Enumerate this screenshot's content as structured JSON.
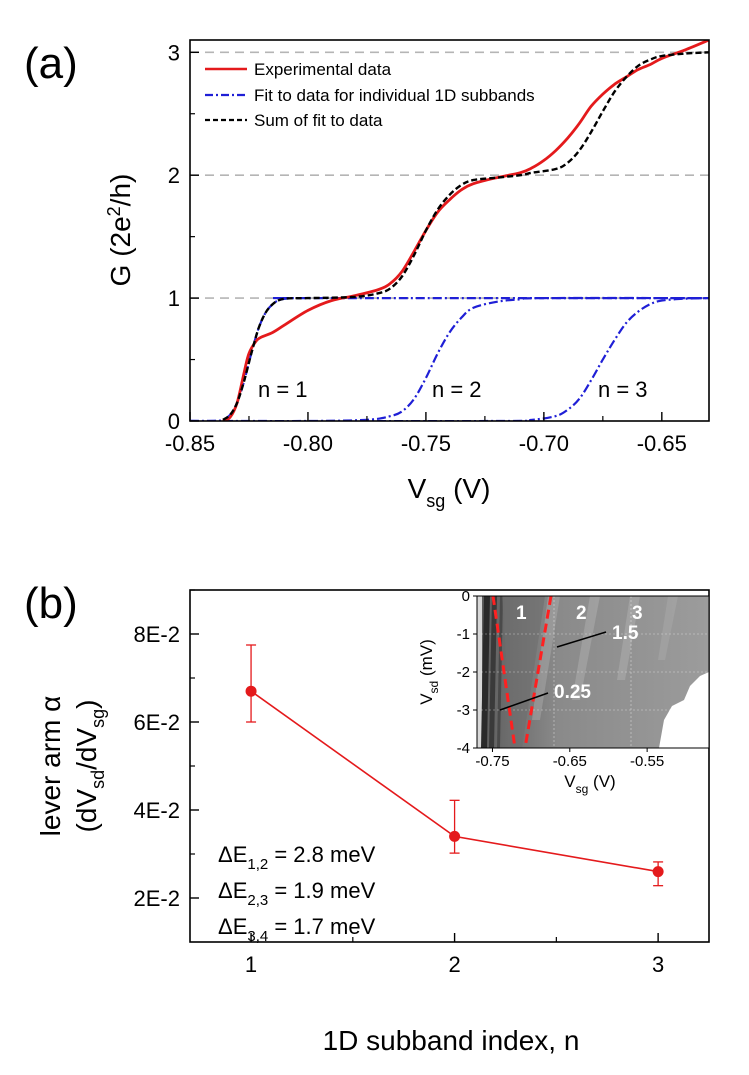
{
  "panel_a": {
    "label": "(a)",
    "legend": [
      {
        "name": "Experimental data",
        "style": "solid",
        "color": "#e41a1c"
      },
      {
        "name": "Fit to data for individual 1D subbands",
        "style": "dash-dot",
        "color": "#1f1fd6"
      },
      {
        "name": "Sum of fit to data",
        "style": "dashed",
        "color": "#000000"
      }
    ],
    "annotations": [
      "n = 1",
      "n = 2",
      "n = 3"
    ]
  },
  "panel_b": {
    "label": "(b)",
    "energy_labels": [
      {
        "prefix": "ΔE",
        "sub": "1,2",
        "value": " = 2.8 meV"
      },
      {
        "prefix": "ΔE",
        "sub": "2,3",
        "value": " = 1.9 meV"
      },
      {
        "prefix": "ΔE",
        "sub": "3,4",
        "value": " = 1.7 meV"
      }
    ],
    "inset": {
      "numbers": [
        "1",
        "2",
        "3"
      ],
      "slopes": [
        "1.5",
        "0.25"
      ],
      "xticks": [
        "-0.75",
        "-0.65",
        "-0.55"
      ],
      "yticks": [
        "0",
        "-1",
        "-2",
        "-3",
        "-4"
      ]
    }
  },
  "chart_data": [
    {
      "type": "line",
      "title": "",
      "xlabel": "V_sg (V)",
      "ylabel": "G (2e^2/h)",
      "xlim": [
        -0.85,
        -0.63
      ],
      "ylim": [
        0,
        3.1
      ],
      "xticks": [
        -0.85,
        -0.8,
        -0.75,
        -0.7,
        -0.65
      ],
      "xtick_labels": [
        "-0.85",
        "-0.80",
        "-0.75",
        "-0.70",
        "-0.65"
      ],
      "yticks": [
        0,
        1,
        2,
        3
      ],
      "ytick_labels": [
        "0",
        "1",
        "2",
        "3"
      ],
      "reference_lines_y": [
        1,
        2,
        3
      ],
      "series": [
        {
          "name": "Experimental data",
          "x": [
            -0.836,
            -0.833,
            -0.83,
            -0.827,
            -0.825,
            -0.822,
            -0.82,
            -0.815,
            -0.81,
            -0.8,
            -0.79,
            -0.78,
            -0.77,
            -0.765,
            -0.76,
            -0.755,
            -0.75,
            -0.745,
            -0.74,
            -0.735,
            -0.73,
            -0.72,
            -0.71,
            -0.705,
            -0.7,
            -0.695,
            -0.69,
            -0.685,
            -0.68,
            -0.675,
            -0.67,
            -0.665,
            -0.66,
            -0.655,
            -0.65,
            -0.64,
            -0.63
          ],
          "values": [
            0,
            0.03,
            0.15,
            0.4,
            0.55,
            0.65,
            0.68,
            0.72,
            0.78,
            0.9,
            0.98,
            1.02,
            1.07,
            1.12,
            1.22,
            1.38,
            1.55,
            1.7,
            1.8,
            1.88,
            1.93,
            1.98,
            2.02,
            2.06,
            2.12,
            2.2,
            2.3,
            2.42,
            2.56,
            2.66,
            2.74,
            2.8,
            2.86,
            2.9,
            2.95,
            3.02,
            3.1
          ]
        },
        {
          "name": "Fit n = 1",
          "x": [
            -0.85,
            -0.84,
            -0.836,
            -0.833,
            -0.83,
            -0.827,
            -0.824,
            -0.821,
            -0.818,
            -0.815,
            -0.812,
            -0.808,
            -0.8,
            -0.63
          ],
          "values": [
            0,
            0,
            0.01,
            0.05,
            0.15,
            0.33,
            0.55,
            0.75,
            0.88,
            0.95,
            0.985,
            0.998,
            1.0,
            1.0
          ]
        },
        {
          "name": "Fit n = 2",
          "x": [
            -0.85,
            -0.8,
            -0.775,
            -0.765,
            -0.76,
            -0.755,
            -0.75,
            -0.745,
            -0.74,
            -0.735,
            -0.73,
            -0.72,
            -0.71,
            -0.7,
            -0.63
          ],
          "values": [
            0,
            0,
            0.01,
            0.04,
            0.08,
            0.18,
            0.35,
            0.55,
            0.72,
            0.84,
            0.92,
            0.97,
            0.99,
            1.0,
            1.0
          ]
        },
        {
          "name": "Fit n = 3",
          "x": [
            -0.85,
            -0.72,
            -0.705,
            -0.695,
            -0.69,
            -0.685,
            -0.68,
            -0.675,
            -0.67,
            -0.665,
            -0.66,
            -0.655,
            -0.65,
            -0.64,
            -0.63
          ],
          "values": [
            0,
            0,
            0.01,
            0.04,
            0.09,
            0.18,
            0.33,
            0.5,
            0.66,
            0.8,
            0.89,
            0.95,
            0.98,
            0.995,
            1.0
          ]
        },
        {
          "name": "Sum of fit to data",
          "x": [
            -0.836,
            -0.833,
            -0.83,
            -0.827,
            -0.824,
            -0.821,
            -0.818,
            -0.815,
            -0.812,
            -0.808,
            -0.8,
            -0.78,
            -0.77,
            -0.765,
            -0.76,
            -0.755,
            -0.75,
            -0.745,
            -0.74,
            -0.735,
            -0.73,
            -0.72,
            -0.71,
            -0.705,
            -0.695,
            -0.69,
            -0.685,
            -0.68,
            -0.675,
            -0.67,
            -0.665,
            -0.66,
            -0.655,
            -0.65,
            -0.64,
            -0.63
          ],
          "values": [
            0.01,
            0.05,
            0.15,
            0.33,
            0.55,
            0.75,
            0.88,
            0.95,
            0.985,
            0.998,
            1.0,
            1.01,
            1.04,
            1.08,
            1.18,
            1.35,
            1.55,
            1.72,
            1.84,
            1.92,
            1.96,
            1.98,
            2.0,
            2.02,
            2.05,
            2.1,
            2.2,
            2.35,
            2.52,
            2.68,
            2.8,
            2.89,
            2.94,
            2.97,
            2.99,
            3.0
          ]
        }
      ]
    },
    {
      "type": "scatter",
      "title": "",
      "xlabel": "1D subband index, n",
      "ylabel": "lever arm α (dV_sd/dV_sg)",
      "xlim": [
        0.7,
        3.25
      ],
      "ylim": [
        0.01,
        0.09
      ],
      "xticks": [
        1,
        2,
        3
      ],
      "xtick_labels": [
        "1",
        "2",
        "3"
      ],
      "yticks": [
        0.02,
        0.04,
        0.06,
        0.08
      ],
      "ytick_labels": [
        "2E-2",
        "4E-2",
        "6E-2",
        "8E-2"
      ],
      "series": [
        {
          "name": "lever arm",
          "x": [
            1,
            2,
            3
          ],
          "values": [
            0.067,
            0.034,
            0.026
          ],
          "err_upper": [
            0.0775,
            0.0422,
            0.0282
          ],
          "err_lower": [
            0.06,
            0.0302,
            0.0228
          ],
          "color": "#e41a1c"
        }
      ]
    },
    {
      "type": "heatmap",
      "title": "inset",
      "xlabel": "V_sg (V)",
      "ylabel": "V_sd (mV)",
      "xlim": [
        -0.77,
        -0.47
      ],
      "ylim": [
        -4,
        0
      ],
      "xticks": [
        -0.75,
        -0.65,
        -0.55
      ],
      "yticks": [
        0,
        -1,
        -2,
        -3,
        -4
      ],
      "overlay_lines": [
        {
          "x": [
            -0.742,
            -0.713
          ],
          "y": [
            0,
            -4
          ],
          "color": "#ff2020"
        },
        {
          "x": [
            -0.667,
            -0.7
          ],
          "y": [
            0,
            -4
          ],
          "color": "#ff2020"
        }
      ]
    }
  ]
}
